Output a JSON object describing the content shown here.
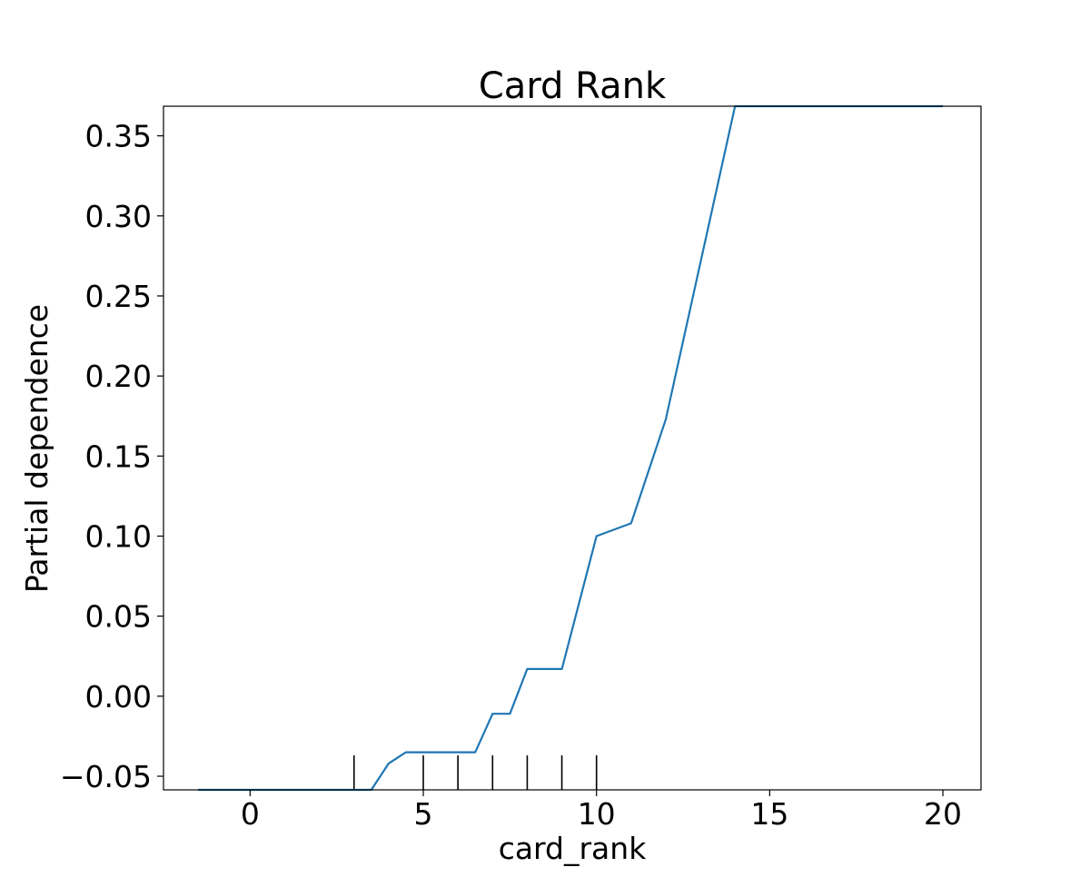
{
  "chart_data": {
    "type": "line",
    "title": "Card Rank",
    "xlabel": "card_rank",
    "ylabel": "Partial dependence",
    "xlim": [
      -2.5,
      21.1
    ],
    "ylim": [
      -0.0585,
      0.3685
    ],
    "xticks": [
      0,
      5,
      10,
      15,
      20
    ],
    "xtick_labels": [
      "0",
      "5",
      "10",
      "15",
      "20"
    ],
    "yticks": [
      -0.05,
      0.0,
      0.05,
      0.1,
      0.15,
      0.2,
      0.25,
      0.3,
      0.35
    ],
    "ytick_labels": [
      "−0.05",
      "0.00",
      "0.05",
      "0.10",
      "0.15",
      "0.20",
      "0.25",
      "0.30",
      "0.35"
    ],
    "grid": false,
    "line_color": "#1f77b4",
    "series": [
      {
        "x": [
          -1.5,
          3.5,
          4.0,
          4.5,
          6.5,
          7.0,
          7.5,
          8.0,
          9.0,
          10.0,
          11.0,
          12.0,
          14.0,
          20.0
        ],
        "y": [
          -0.0585,
          -0.0585,
          -0.042,
          -0.035,
          -0.035,
          -0.011,
          -0.011,
          0.017,
          0.017,
          0.1,
          0.108,
          0.173,
          0.3685,
          0.3685
        ]
      }
    ],
    "rug": [
      3,
      5,
      6,
      7,
      8,
      9,
      10
    ]
  }
}
